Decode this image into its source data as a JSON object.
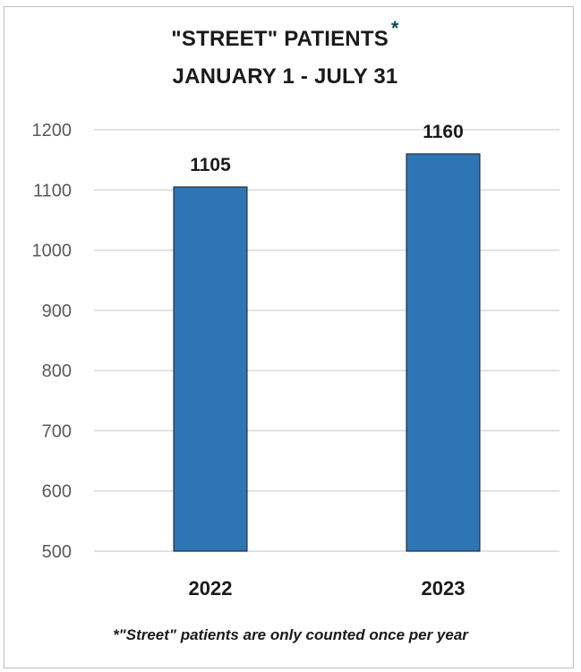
{
  "chart_data": {
    "type": "bar",
    "title_line1": "\"STREET\" PATIENTS",
    "title_asterisk": "*",
    "title_line2": "JANUARY 1 - JULY 31",
    "categories": [
      "2022",
      "2023"
    ],
    "values": [
      1105,
      1160
    ],
    "data_labels": [
      "1105",
      "1160"
    ],
    "ylim": [
      500,
      1200
    ],
    "yticks": [
      1200,
      1100,
      1000,
      900,
      800,
      700,
      600,
      500
    ],
    "grid": true,
    "bar_color": "#2e75b6",
    "footnote": "*\"Street\" patients are only counted once per year"
  }
}
